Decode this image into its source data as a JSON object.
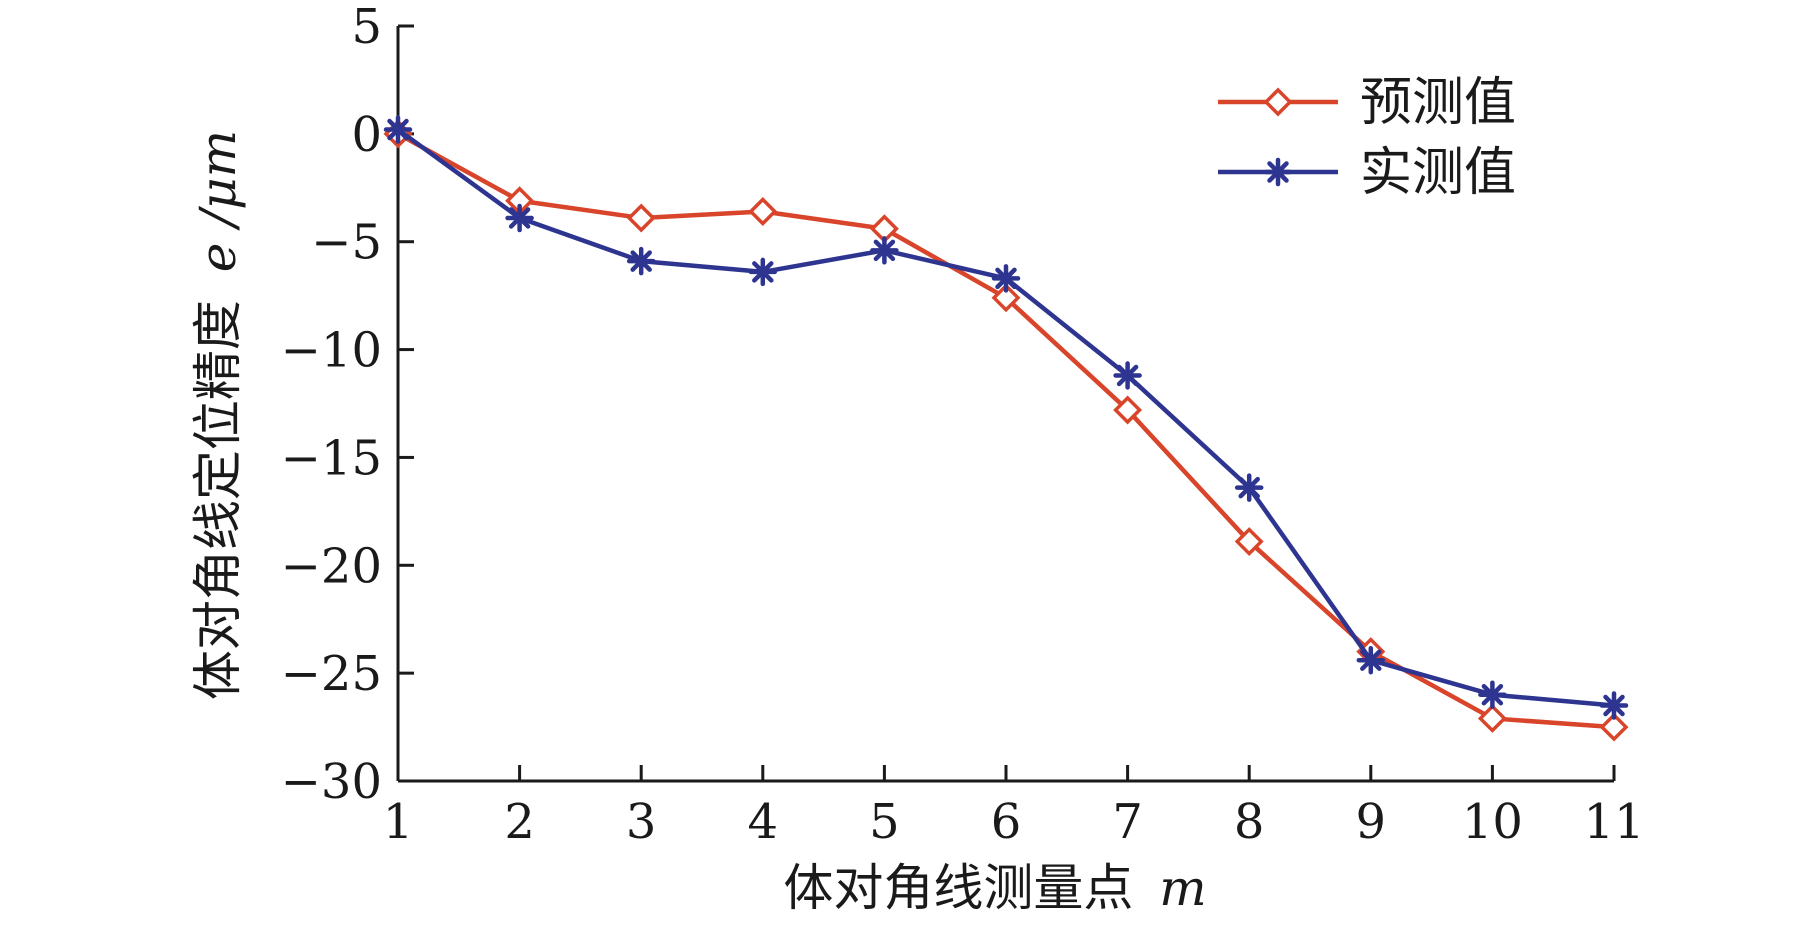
{
  "chart_data": {
    "type": "line",
    "title": "",
    "xlabel": "体对角线测量点",
    "xlabel_var": "m",
    "ylabel": "体对角线定位精度",
    "ylabel_var": "e",
    "ylabel_unit": "/μm",
    "x": [
      1,
      2,
      3,
      4,
      5,
      6,
      7,
      8,
      9,
      10,
      11
    ],
    "xtick_labels": [
      "1",
      "2",
      "3",
      "4",
      "5",
      "6",
      "7",
      "8",
      "9",
      "10",
      "11"
    ],
    "ytick_values": [
      5,
      0,
      -5,
      -10,
      -15,
      -20,
      -25,
      -30
    ],
    "ytick_labels": [
      "5",
      "0",
      "−5",
      "−10",
      "−15",
      "−20",
      "−25",
      "−30"
    ],
    "xlim": [
      1,
      11
    ],
    "ylim": [
      -30,
      5
    ],
    "grid": false,
    "legend_position": "top-right",
    "series": [
      {
        "name": "预测值",
        "color": "#d9452b",
        "marker": "diamond",
        "values": [
          0,
          -3.1,
          -3.9,
          -3.6,
          -4.4,
          -7.6,
          -12.8,
          -18.9,
          -24.0,
          -27.1,
          -27.5
        ]
      },
      {
        "name": "实测值",
        "color": "#2e3590",
        "marker": "asterisk",
        "values": [
          0.2,
          -3.9,
          -5.9,
          -6.4,
          -5.4,
          -6.7,
          -11.2,
          -16.4,
          -24.4,
          -26.0,
          -26.5
        ]
      }
    ]
  }
}
